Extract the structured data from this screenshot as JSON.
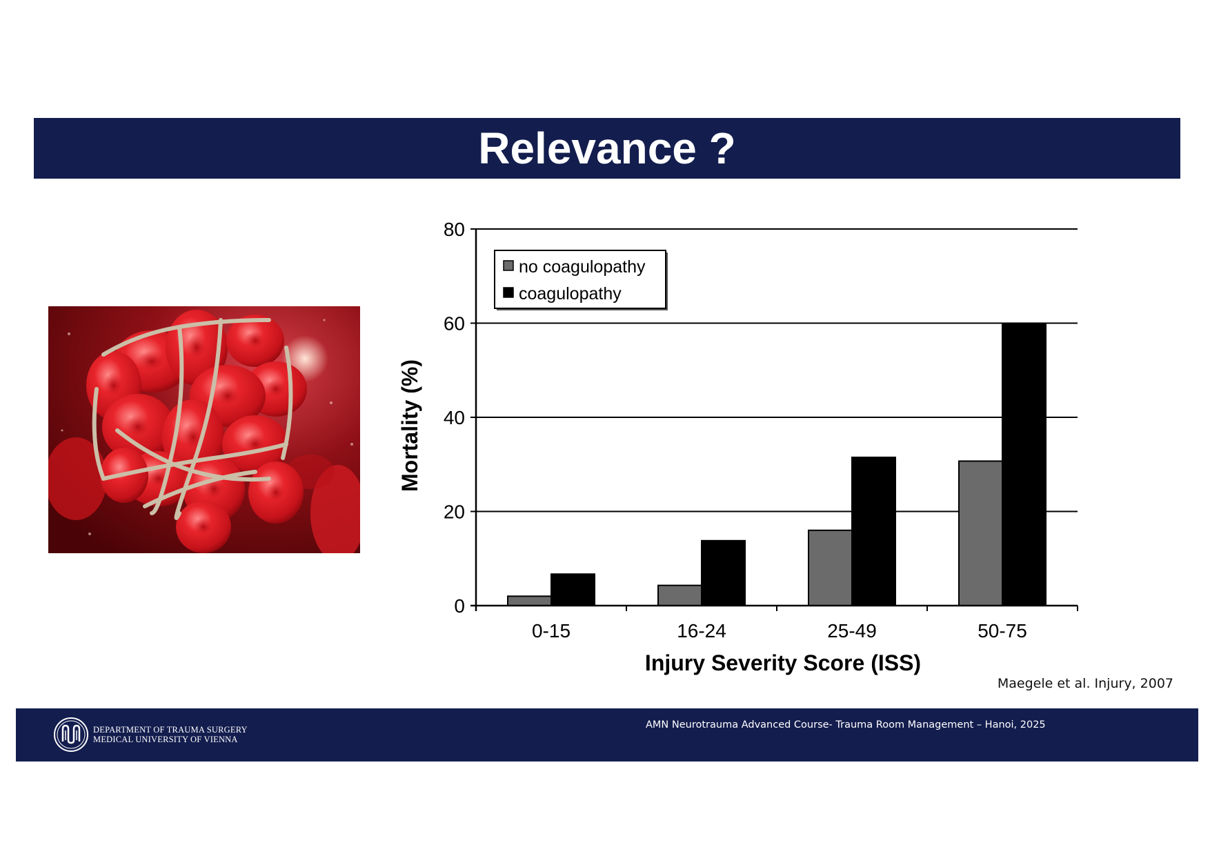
{
  "slide": {
    "title": "Relevance ?",
    "citation": "Maegele et al. Injury, 2007"
  },
  "image": {
    "icon": "blood-clot-illustration"
  },
  "footer": {
    "logo_line1": "DEPARTMENT OF TRAUMA SURGERY",
    "logo_line2": "MEDICAL UNIVERSITY OF VIENNA",
    "course": "AMN Neurotrauma Advanced Course- Trauma Room Management – Hanoi, 2025"
  },
  "colors": {
    "banner": "#131d4e",
    "no_coagulopathy": "#6b6b6b",
    "coagulopathy": "#000000"
  },
  "chart_data": {
    "type": "bar",
    "xlabel": "Injury Severity Score (ISS)",
    "ylabel": "Mortality (%)",
    "categories": [
      "0-15",
      "16-24",
      "25-49",
      "50-75"
    ],
    "series": [
      {
        "name": "no coagulopathy",
        "values": [
          2,
          4.3,
          16,
          30.7
        ]
      },
      {
        "name": "coagulopathy",
        "values": [
          6.7,
          13.8,
          31.5,
          60
        ]
      }
    ],
    "ylim": [
      0,
      80
    ],
    "yticks": [
      0,
      20,
      40,
      60,
      80
    ],
    "grid": true,
    "legend": "top-left"
  }
}
